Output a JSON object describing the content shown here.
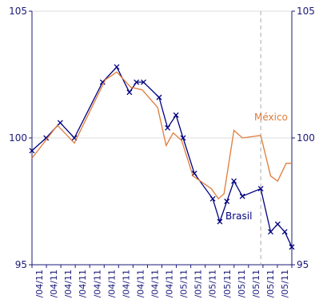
{
  "chart_data": {
    "type": "line",
    "title": "",
    "xlabel": "",
    "ylabel": "",
    "ylim": [
      95,
      105
    ],
    "y_ticks": [
      "95",
      "100",
      "105"
    ],
    "y_ticks_right": [
      "95",
      "100",
      "105"
    ],
    "x_tick_labels": [
      "/04/11",
      "/04/11",
      "/04/11",
      "/04/11",
      "/04/11",
      "/04/11",
      "/04/11",
      "/04/11",
      "/04/11",
      "/04/11",
      "/05/11",
      "/05/11",
      "/05/11",
      "/05/11",
      "/05/11",
      "/05/11",
      "/05/11",
      "/05/11"
    ],
    "grid": "horizontal",
    "reference_line_index": 27,
    "series": [
      {
        "name": "Brasil",
        "color": "#000080",
        "markers": true,
        "values": [
          99.5,
          100.0,
          100.6,
          100.0,
          102.2,
          102.8,
          101.8,
          102.2,
          102.2,
          101.6,
          100.4,
          100.9,
          100.0,
          98.6,
          97.6,
          96.7,
          97.5,
          98.3,
          97.7,
          98.0,
          96.3,
          96.6,
          96.3,
          95.7
        ]
      },
      {
        "name": "México",
        "color": "#e07b39",
        "markers": false,
        "values": [
          99.2,
          100.5,
          99.8,
          102.3,
          102.6,
          102.0,
          101.9,
          101.2,
          99.7,
          100.2,
          99.9,
          98.5,
          98.0,
          97.6,
          97.8,
          100.3,
          100.0,
          100.1,
          98.5,
          98.3,
          99.0,
          99.0
        ]
      }
    ],
    "x_positions": {
      "Brasil": [
        0,
        1,
        2,
        3,
        5,
        6,
        6.9,
        7.4,
        7.9,
        9,
        9.6,
        10.2,
        10.7,
        11.5,
        12.8,
        13.3,
        13.8,
        14.3,
        14.9,
        16.2,
        16.9,
        17.4,
        17.9,
        18.4
      ],
      "México": [
        0,
        1.8,
        3,
        5.2,
        6,
        7,
        7.8,
        8.9,
        9.5,
        10.0,
        10.6,
        11.4,
        12.7,
        13.2,
        13.6,
        14.3,
        14.9,
        16.2,
        16.9,
        17.4,
        18.0,
        18.4
      ]
    }
  }
}
